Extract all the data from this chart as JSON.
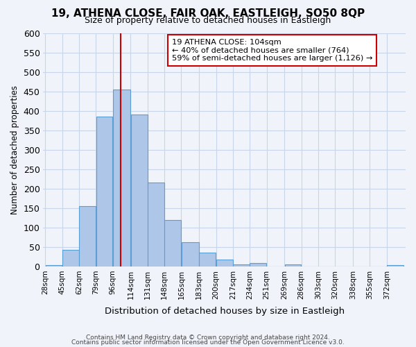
{
  "title": "19, ATHENA CLOSE, FAIR OAK, EASTLEIGH, SO50 8QP",
  "subtitle": "Size of property relative to detached houses in Eastleigh",
  "xlabel": "Distribution of detached houses by size in Eastleigh",
  "ylabel": "Number of detached properties",
  "bin_labels": [
    "28sqm",
    "45sqm",
    "62sqm",
    "79sqm",
    "96sqm",
    "114sqm",
    "131sqm",
    "148sqm",
    "165sqm",
    "183sqm",
    "200sqm",
    "217sqm",
    "234sqm",
    "251sqm",
    "269sqm",
    "286sqm",
    "303sqm",
    "320sqm",
    "338sqm",
    "355sqm",
    "372sqm"
  ],
  "bar_heights": [
    3,
    42,
    155,
    385,
    455,
    390,
    215,
    120,
    62,
    35,
    18,
    5,
    8,
    0,
    5,
    0,
    0,
    0,
    0,
    0,
    3
  ],
  "bar_color": "#aec6e8",
  "bar_edge_color": "#5a9fd4",
  "vline_x": 104,
  "vline_color": "#cc0000",
  "bin_edges_values": [
    28,
    45,
    62,
    79,
    96,
    114,
    131,
    148,
    165,
    183,
    200,
    217,
    234,
    251,
    269,
    286,
    303,
    320,
    338,
    355,
    372,
    389
  ],
  "ylim": [
    0,
    600
  ],
  "yticks": [
    0,
    50,
    100,
    150,
    200,
    250,
    300,
    350,
    400,
    450,
    500,
    550,
    600
  ],
  "annotation_title": "19 ATHENA CLOSE: 104sqm",
  "annotation_line1": "← 40% of detached houses are smaller (764)",
  "annotation_line2": "59% of semi-detached houses are larger (1,126) →",
  "annotation_box_color": "#ffffff",
  "annotation_box_edge": "#cc0000",
  "footer1": "Contains HM Land Registry data © Crown copyright and database right 2024.",
  "footer2": "Contains public sector information licensed under the Open Government Licence v3.0.",
  "bg_color": "#f0f4fa",
  "grid_color": "#c8d4e8"
}
